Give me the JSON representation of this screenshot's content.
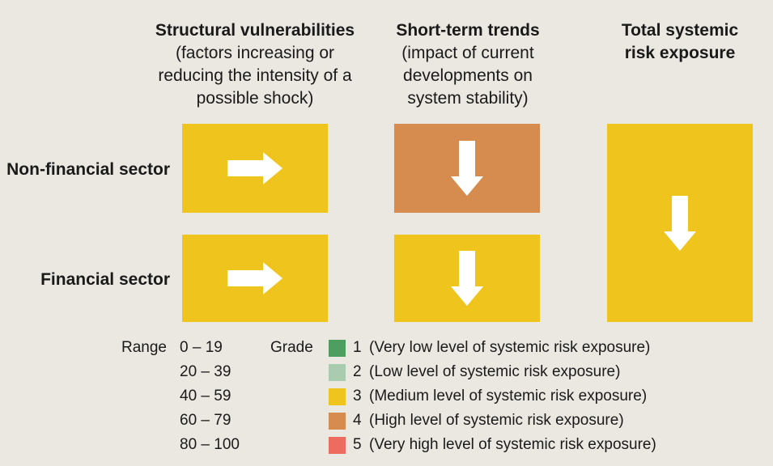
{
  "colors": {
    "background": "#ebe7e1",
    "grade1": "#4f9e61",
    "grade2": "#a9ccb0",
    "grade3": "#efc41c",
    "grade4": "#d68c4f",
    "grade5": "#ee6b5f",
    "arrow": "#ffffff"
  },
  "columns": {
    "structural": {
      "title": "Structural vulnerabilities",
      "subtitle": "(factors increasing or\nreducing the intensity of a\npossible shock)"
    },
    "short_term": {
      "title": "Short-term trends",
      "subtitle": "(impact of current\ndevelopments on\nsystem stability)"
    },
    "total": {
      "title": "Total systemic\nrisk exposure"
    }
  },
  "rows": {
    "non_financial": "Non-financial sector",
    "financial": "Financial sector"
  },
  "tiles": {
    "struct_nonfin": {
      "grade": 3,
      "direction": "right-arrow-icon"
    },
    "short_nonfin": {
      "grade": 4,
      "direction": "down-arrow-icon"
    },
    "struct_fin": {
      "grade": 3,
      "direction": "right-arrow-icon"
    },
    "short_fin": {
      "grade": 3,
      "direction": "down-arrow-icon"
    },
    "total": {
      "grade": 3,
      "direction": "down-arrow-icon"
    }
  },
  "legend": {
    "range_label": "Range",
    "grade_label": "Grade",
    "ranges": [
      "0 – 19",
      "20 – 39",
      "40 – 59",
      "60 – 79",
      "80 – 100"
    ],
    "grades": [
      {
        "num": "1",
        "text": "(Very low level of systemic risk exposure)"
      },
      {
        "num": "2",
        "text": "(Low level of systemic risk exposure)"
      },
      {
        "num": "3",
        "text": "(Medium level of systemic risk exposure)"
      },
      {
        "num": "4",
        "text": "(High level of systemic risk exposure)"
      },
      {
        "num": "5",
        "text": "(Very high level of systemic risk exposure)"
      }
    ]
  }
}
